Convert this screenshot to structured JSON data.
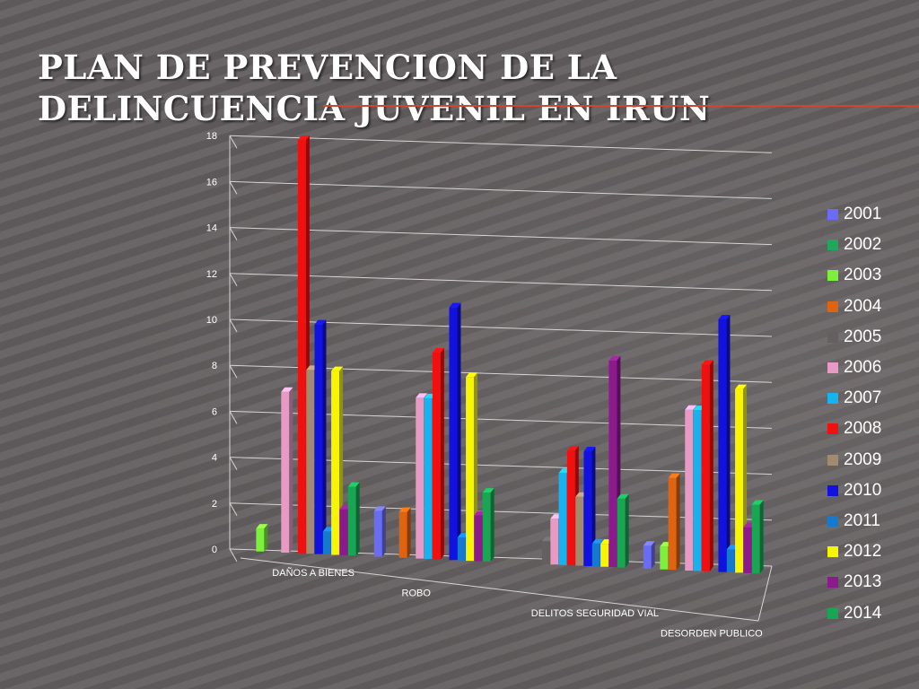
{
  "title": "PLAN DE PREVENCION DE LA DELINCUENCIA JUVENIL EN IRUN",
  "chart_data": {
    "type": "bar",
    "title": "PLAN DE PREVENCION DE LA DELINCUENCIA JUVENIL EN IRUN",
    "xlabel": "",
    "ylabel": "",
    "ylim": [
      0,
      18
    ],
    "y_ticks": [
      "0",
      "2",
      "4",
      "6",
      "8",
      "10",
      "12",
      "14",
      "16",
      "18"
    ],
    "grid": true,
    "legend_position": "right",
    "three_d": true,
    "categories": [
      "DAÑOS A BIENES",
      "ROBO",
      "DELITOS SEGURIDAD VIAL",
      "DESORDEN PUBLICO"
    ],
    "series": [
      {
        "name": "2001",
        "color": "#6a6cf5",
        "values": [
          0,
          2,
          0,
          1
        ]
      },
      {
        "name": "2002",
        "color": "#1fa85a",
        "values": [
          0,
          0,
          0,
          0
        ]
      },
      {
        "name": "2003",
        "color": "#7df03c",
        "values": [
          1,
          0,
          0,
          1
        ]
      },
      {
        "name": "2004",
        "color": "#e06410",
        "values": [
          0,
          2,
          0,
          4
        ]
      },
      {
        "name": "2005",
        "color": "#655f60",
        "values": [
          0,
          0,
          1,
          0
        ]
      },
      {
        "name": "2006",
        "color": "#e89ac4",
        "values": [
          7,
          7,
          2,
          7
        ]
      },
      {
        "name": "2007",
        "color": "#16b3f0",
        "values": [
          0,
          7,
          4,
          7
        ]
      },
      {
        "name": "2008",
        "color": "#f01010",
        "values": [
          18,
          9,
          5,
          9
        ]
      },
      {
        "name": "2009",
        "color": "#a28a6e",
        "values": [
          8,
          0,
          3,
          0
        ]
      },
      {
        "name": "2010",
        "color": "#1212e0",
        "values": [
          10,
          11,
          5,
          11
        ]
      },
      {
        "name": "2011",
        "color": "#1679d0",
        "values": [
          1,
          1,
          1,
          1
        ]
      },
      {
        "name": "2012",
        "color": "#f7f500",
        "values": [
          8,
          8,
          1,
          8
        ]
      },
      {
        "name": "2013",
        "color": "#8c1a8c",
        "values": [
          2,
          2,
          9,
          2
        ]
      },
      {
        "name": "2014",
        "color": "#18a653",
        "values": [
          3,
          3,
          3,
          3
        ]
      }
    ]
  }
}
